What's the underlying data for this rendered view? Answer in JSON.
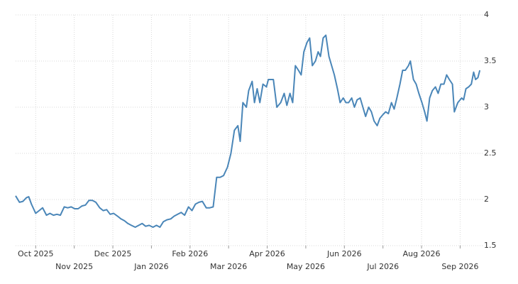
{
  "chart_data": {
    "type": "line",
    "x": [
      -0.52,
      -0.42,
      -0.33,
      -0.24,
      -0.18,
      -0.11,
      0,
      0.09,
      0.18,
      0.28,
      0.37,
      0.46,
      0.55,
      0.64,
      0.74,
      0.83,
      0.92,
      1.01,
      1.1,
      1.2,
      1.29,
      1.38,
      1.47,
      1.56,
      1.66,
      1.75,
      1.84,
      1.93,
      2.02,
      2.12,
      2.21,
      2.3,
      2.39,
      2.48,
      2.58,
      2.67,
      2.76,
      2.85,
      2.94,
      3.04,
      3.13,
      3.22,
      3.31,
      3.4,
      3.5,
      3.59,
      3.68,
      3.77,
      3.86,
      3.96,
      4.05,
      4.14,
      4.23,
      4.32,
      4.42,
      4.51,
      4.6,
      4.69,
      4.78,
      4.87,
      4.97,
      5.06,
      5.15,
      5.24,
      5.3,
      5.37,
      5.46,
      5.52,
      5.61,
      5.67,
      5.74,
      5.81,
      5.89,
      5.98,
      6.03,
      6.16,
      6.25,
      6.35,
      6.44,
      6.51,
      6.59,
      6.66,
      6.73,
      6.81,
      6.88,
      6.95,
      7.03,
      7.1,
      7.17,
      7.25,
      7.32,
      7.38,
      7.45,
      7.52,
      7.6,
      7.67,
      7.74,
      7.82,
      7.89,
      7.97,
      8.04,
      8.11,
      8.19,
      8.26,
      8.33,
      8.41,
      8.48,
      8.55,
      8.63,
      8.7,
      8.77,
      8.85,
      8.92,
      9.0,
      9.07,
      9.14,
      9.22,
      9.29,
      9.36,
      9.44,
      9.51,
      9.58,
      9.66,
      9.71,
      9.79,
      9.86,
      9.93,
      10.01,
      10.08,
      10.14,
      10.21,
      10.28,
      10.36,
      10.43,
      10.5,
      10.58,
      10.65,
      10.72,
      10.8,
      10.85,
      10.94,
      11.04,
      11.09,
      11.15,
      11.22,
      11.29,
      11.35,
      11.4,
      11.46,
      11.51
    ],
    "series": [
      {
        "color": "#4a86b8",
        "values": [
          2.04,
          1.97,
          1.98,
          2.02,
          2.03,
          1.95,
          1.85,
          1.88,
          1.91,
          1.83,
          1.85,
          1.83,
          1.84,
          1.83,
          1.92,
          1.91,
          1.92,
          1.9,
          1.9,
          1.93,
          1.94,
          1.99,
          1.99,
          1.97,
          1.91,
          1.88,
          1.89,
          1.84,
          1.85,
          1.82,
          1.79,
          1.77,
          1.74,
          1.72,
          1.7,
          1.72,
          1.74,
          1.71,
          1.72,
          1.7,
          1.72,
          1.7,
          1.76,
          1.78,
          1.79,
          1.82,
          1.84,
          1.86,
          1.83,
          1.92,
          1.88,
          1.95,
          1.97,
          1.98,
          1.91,
          1.91,
          1.92,
          2.24,
          2.24,
          2.26,
          2.35,
          2.5,
          2.75,
          2.8,
          2.63,
          3.05,
          3.0,
          3.18,
          3.28,
          3.05,
          3.2,
          3.05,
          3.25,
          3.22,
          3.3,
          3.3,
          3.0,
          3.05,
          3.15,
          3.02,
          3.15,
          3.05,
          3.45,
          3.4,
          3.35,
          3.6,
          3.7,
          3.75,
          3.45,
          3.5,
          3.6,
          3.55,
          3.75,
          3.78,
          3.55,
          3.45,
          3.35,
          3.2,
          3.05,
          3.1,
          3.05,
          3.05,
          3.1,
          3.0,
          3.08,
          3.1,
          3.0,
          2.9,
          3.0,
          2.95,
          2.85,
          2.8,
          2.88,
          2.92,
          2.95,
          2.93,
          3.05,
          2.98,
          3.1,
          3.25,
          3.4,
          3.4,
          3.45,
          3.5,
          3.3,
          3.25,
          3.15,
          3.05,
          2.95,
          2.85,
          3.1,
          3.18,
          3.22,
          3.15,
          3.25,
          3.25,
          3.35,
          3.3,
          3.25,
          2.95,
          3.05,
          3.1,
          3.08,
          3.2,
          3.22,
          3.25,
          3.38,
          3.3,
          3.32,
          3.4
        ]
      }
    ],
    "xlim": [
      -0.52,
      11.58
    ],
    "xticks": [
      {
        "value": 0,
        "label": "Oct 2025"
      },
      {
        "value": 1,
        "label": "Nov 2025"
      },
      {
        "value": 2,
        "label": "Dec 2025"
      },
      {
        "value": 3,
        "label": "Jan 2026"
      },
      {
        "value": 4,
        "label": "Feb 2026"
      },
      {
        "value": 5,
        "label": "Mar 2026"
      },
      {
        "value": 6,
        "label": "Apr 2026"
      },
      {
        "value": 7,
        "label": "May 2026"
      },
      {
        "value": 8,
        "label": "Jun 2026"
      },
      {
        "value": 9,
        "label": "Jul 2026"
      },
      {
        "value": 10,
        "label": "Aug 2026"
      },
      {
        "value": 11,
        "label": "Sep 2026"
      }
    ],
    "ylim": [
      1.5,
      4
    ],
    "yticks": [
      1.5,
      2,
      2.5,
      3,
      3.5,
      4
    ],
    "grid": true
  }
}
